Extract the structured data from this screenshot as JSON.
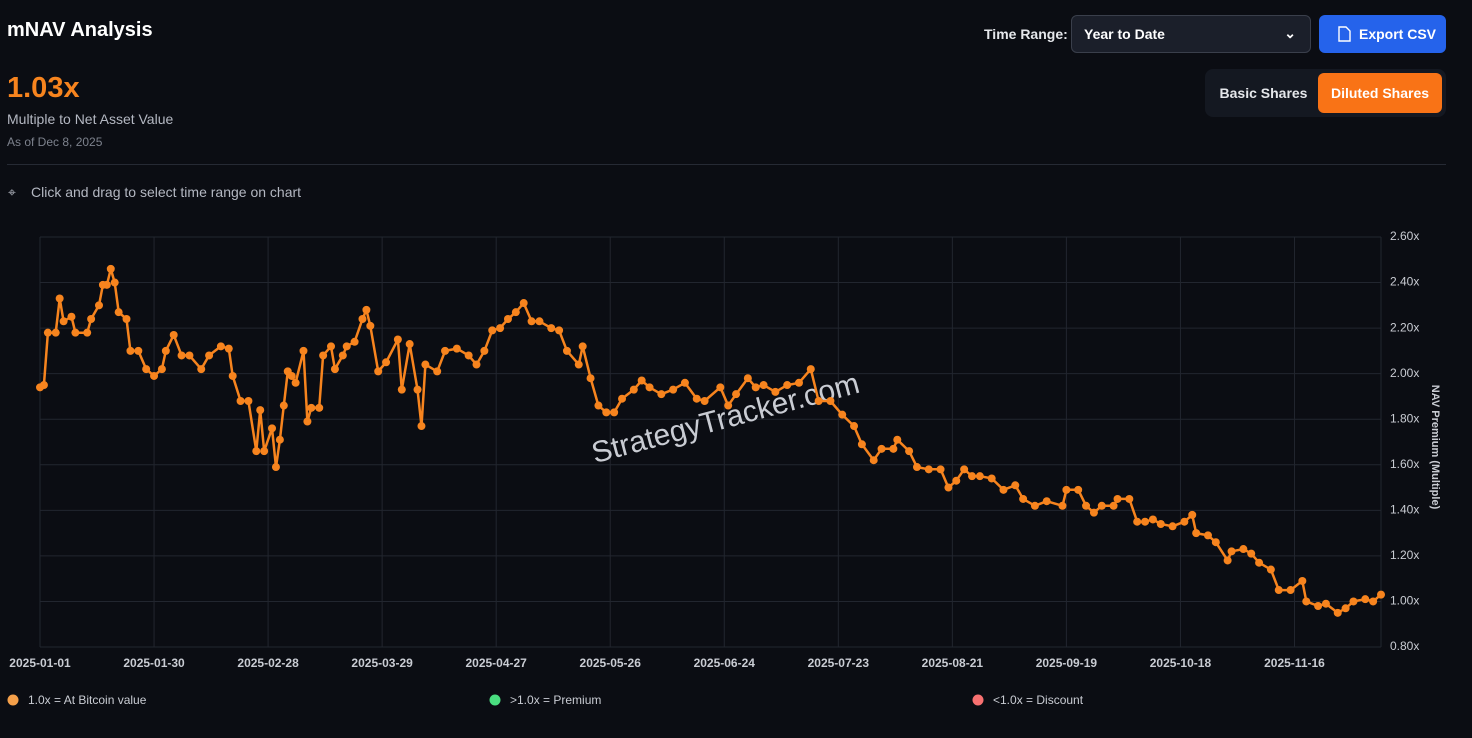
{
  "header": {
    "title": "mNAV Analysis"
  },
  "metric": {
    "value": "1.03x",
    "label": "Multiple to Net Asset Value",
    "as_of": "As of Dec 8, 2025"
  },
  "controls": {
    "time_range_label": "Time Range:",
    "time_range": "Year to Date",
    "export": "Export CSV",
    "toggles": [
      "Basic Shares",
      "Diluted Shares"
    ]
  },
  "hint": "Click and drag to select time range on chart",
  "chart_data": {
    "type": "line",
    "color": "#f7841e",
    "y_label": "NAV Premium (Multiple)",
    "watermark": "StrategyTracker.com",
    "x": [
      "2025-01-01",
      "2025-01-02",
      "2025-01-03",
      "2025-01-05",
      "2025-01-06",
      "2025-01-07",
      "2025-01-09",
      "2025-01-10",
      "2025-01-13",
      "2025-01-14",
      "2025-01-16",
      "2025-01-17",
      "2025-01-18",
      "2025-01-19",
      "2025-01-20",
      "2025-01-21",
      "2025-01-23",
      "2025-01-24",
      "2025-01-26",
      "2025-01-28",
      "2025-01-30",
      "2025-02-01",
      "2025-02-02",
      "2025-02-04",
      "2025-02-06",
      "2025-02-08",
      "2025-02-11",
      "2025-02-13",
      "2025-02-16",
      "2025-02-18",
      "2025-02-19",
      "2025-02-21",
      "2025-02-23",
      "2025-02-25",
      "2025-02-26",
      "2025-02-27",
      "2025-03-01",
      "2025-03-02",
      "2025-03-03",
      "2025-03-04",
      "2025-03-05",
      "2025-03-06",
      "2025-03-07",
      "2025-03-09",
      "2025-03-10",
      "2025-03-11",
      "2025-03-13",
      "2025-03-14",
      "2025-03-16",
      "2025-03-17",
      "2025-03-19",
      "2025-03-20",
      "2025-03-22",
      "2025-03-24",
      "2025-03-25",
      "2025-03-26",
      "2025-03-28",
      "2025-03-30",
      "2025-04-02",
      "2025-04-03",
      "2025-04-05",
      "2025-04-07",
      "2025-04-08",
      "2025-04-09",
      "2025-04-12",
      "2025-04-14",
      "2025-04-17",
      "2025-04-20",
      "2025-04-22",
      "2025-04-24",
      "2025-04-26",
      "2025-04-28",
      "2025-04-30",
      "2025-05-02",
      "2025-05-04",
      "2025-05-06",
      "2025-05-08",
      "2025-05-11",
      "2025-05-13",
      "2025-05-15",
      "2025-05-18",
      "2025-05-19",
      "2025-05-21",
      "2025-05-23",
      "2025-05-25",
      "2025-05-27",
      "2025-05-29",
      "2025-06-01",
      "2025-06-03",
      "2025-06-05",
      "2025-06-08",
      "2025-06-11",
      "2025-06-14",
      "2025-06-17",
      "2025-06-19",
      "2025-06-23",
      "2025-06-25",
      "2025-06-27",
      "2025-06-30",
      "2025-07-02",
      "2025-07-04",
      "2025-07-07",
      "2025-07-10",
      "2025-07-13",
      "2025-07-16",
      "2025-07-18",
      "2025-07-21",
      "2025-07-24",
      "2025-07-27",
      "2025-07-29",
      "2025-08-01",
      "2025-08-03",
      "2025-08-06",
      "2025-08-07",
      "2025-08-10",
      "2025-08-12",
      "2025-08-15",
      "2025-08-18",
      "2025-08-20",
      "2025-08-22",
      "2025-08-24",
      "2025-08-26",
      "2025-08-28",
      "2025-08-31",
      "2025-09-03",
      "2025-09-06",
      "2025-09-08",
      "2025-09-11",
      "2025-09-14",
      "2025-09-18",
      "2025-09-19",
      "2025-09-22",
      "2025-09-24",
      "2025-09-26",
      "2025-09-28",
      "2025-10-01",
      "2025-10-02",
      "2025-10-05",
      "2025-10-07",
      "2025-10-09",
      "2025-10-11",
      "2025-10-13",
      "2025-10-16",
      "2025-10-19",
      "2025-10-21",
      "2025-10-22",
      "2025-10-25",
      "2025-10-27",
      "2025-10-30",
      "2025-10-31",
      "2025-11-03",
      "2025-11-05",
      "2025-11-07",
      "2025-11-10",
      "2025-11-12",
      "2025-11-15",
      "2025-11-18",
      "2025-11-19",
      "2025-11-22",
      "2025-11-24",
      "2025-11-27",
      "2025-11-29",
      "2025-12-01",
      "2025-12-04",
      "2025-12-06",
      "2025-12-08"
    ],
    "values": [
      1.94,
      1.95,
      2.18,
      2.18,
      2.33,
      2.23,
      2.25,
      2.18,
      2.18,
      2.24,
      2.3,
      2.39,
      2.39,
      2.46,
      2.4,
      2.27,
      2.24,
      2.1,
      2.1,
      2.02,
      1.99,
      2.02,
      2.1,
      2.17,
      2.08,
      2.08,
      2.02,
      2.08,
      2.12,
      2.11,
      1.99,
      1.88,
      1.88,
      1.66,
      1.84,
      1.66,
      1.76,
      1.59,
      1.71,
      1.86,
      2.01,
      1.99,
      1.96,
      2.1,
      1.79,
      1.85,
      1.85,
      2.08,
      2.12,
      2.02,
      2.08,
      2.12,
      2.14,
      2.24,
      2.28,
      2.21,
      2.01,
      2.05,
      2.15,
      1.93,
      2.13,
      1.93,
      1.77,
      2.04,
      2.01,
      2.1,
      2.11,
      2.08,
      2.04,
      2.1,
      2.19,
      2.2,
      2.24,
      2.27,
      2.31,
      2.23,
      2.23,
      2.2,
      2.19,
      2.1,
      2.04,
      2.12,
      1.98,
      1.86,
      1.83,
      1.83,
      1.89,
      1.93,
      1.97,
      1.94,
      1.91,
      1.93,
      1.96,
      1.89,
      1.88,
      1.94,
      1.86,
      1.91,
      1.98,
      1.94,
      1.95,
      1.92,
      1.95,
      1.96,
      2.02,
      1.88,
      1.88,
      1.82,
      1.77,
      1.69,
      1.62,
      1.67,
      1.67,
      1.71,
      1.66,
      1.59,
      1.58,
      1.58,
      1.5,
      1.53,
      1.58,
      1.55,
      1.55,
      1.54,
      1.49,
      1.51,
      1.45,
      1.42,
      1.44,
      1.42,
      1.49,
      1.49,
      1.42,
      1.39,
      1.42,
      1.42,
      1.45,
      1.45,
      1.35,
      1.35,
      1.36,
      1.34,
      1.33,
      1.35,
      1.38,
      1.3,
      1.29,
      1.26,
      1.18,
      1.22,
      1.23,
      1.21,
      1.17,
      1.14,
      1.05,
      1.05,
      1.09,
      1.0,
      0.98,
      0.99,
      0.95,
      0.97,
      1.0,
      1.01,
      1.0,
      1.03
    ],
    "xlim": [
      "2025-01-01",
      "2025-12-08"
    ],
    "xticks": [
      "2025-01-01",
      "2025-01-30",
      "2025-02-28",
      "2025-03-29",
      "2025-04-27",
      "2025-05-26",
      "2025-06-24",
      "2025-07-23",
      "2025-08-21",
      "2025-09-19",
      "2025-10-18",
      "2025-11-16"
    ],
    "ylim": [
      0.8,
      2.6
    ],
    "yticks": [
      {
        "value": 0.8,
        "label": "0.80x"
      },
      {
        "value": 1.0,
        "label": "1.00x"
      },
      {
        "value": 1.2,
        "label": "1.20x"
      },
      {
        "value": 1.4,
        "label": "1.40x"
      },
      {
        "value": 1.6,
        "label": "1.60x"
      },
      {
        "value": 1.8,
        "label": "1.80x"
      },
      {
        "value": 2.0,
        "label": "2.00x"
      },
      {
        "value": 2.2,
        "label": "2.20x"
      },
      {
        "value": 2.4,
        "label": "2.40x"
      },
      {
        "value": 2.6,
        "label": "2.60x"
      }
    ],
    "grid": true,
    "legend": [
      {
        "label": "1.0x = At Bitcoin value",
        "color": "#f5a04a"
      },
      {
        "label": ">1.0x = Premium",
        "color": "#4ade80"
      },
      {
        "label": "<1.0x = Discount",
        "color": "#f87171"
      }
    ]
  }
}
